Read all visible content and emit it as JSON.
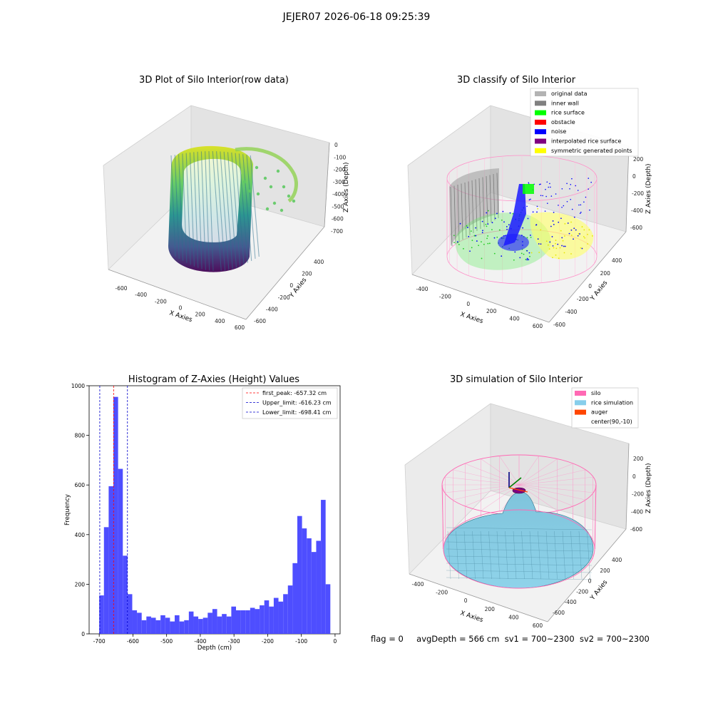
{
  "figure": {
    "suptitle": "JEJER07 2026-06-18 09:25:39",
    "status": {
      "flag": "flag = 0",
      "avgDepth": "avgDepth = 566 cm",
      "sv1": "sv1 = 700~2300",
      "sv2": "sv2 = 700~2300"
    }
  },
  "chart_data": [
    {
      "type": "scatter",
      "title": "3D Plot of Silo Interior(row data)",
      "xlabel": "X Axies",
      "ylabel": "Y Axies",
      "zlabel": "Z Axies (Depth)",
      "x_ticks": [
        "-600",
        "-400",
        "-200",
        "0",
        "200",
        "400",
        "600"
      ],
      "y_ticks": [
        "-600",
        "-400",
        "-200",
        "0",
        "200",
        "400"
      ],
      "z_ticks": [
        "0",
        "-100",
        "-200",
        "-300",
        "-400",
        "-500",
        "-600",
        "-700"
      ],
      "colormap": "viridis"
    },
    {
      "type": "scatter",
      "title": "3D classify of Silo Interior",
      "xlabel": "X Axies",
      "ylabel": "Y Axies",
      "zlabel": "Z Axies (Depth)",
      "x_ticks": [
        "-400",
        "-200",
        "0",
        "200",
        "400",
        "600"
      ],
      "y_ticks": [
        "-600",
        "-400",
        "-200",
        "0",
        "200",
        "400"
      ],
      "z_ticks": [
        "200",
        "0",
        "-200",
        "-400",
        "-600"
      ],
      "legend": [
        {
          "label": "original data",
          "color": "#b3b3b3"
        },
        {
          "label": "inner wall",
          "color": "#808080"
        },
        {
          "label": "rice surface",
          "color": "#00ff00"
        },
        {
          "label": "obstacle",
          "color": "#ff0000"
        },
        {
          "label": "noise",
          "color": "#0000ff"
        },
        {
          "label": "interpolated rice surface",
          "color": "#800080"
        },
        {
          "label": "symmetric generated points",
          "color": "#ffff00"
        }
      ]
    },
    {
      "type": "bar",
      "title": "Histogram of Z-Axies (Height) Values",
      "xlabel": "Depth (cm)",
      "ylabel": "Frequency",
      "xlim": [
        -730,
        15
      ],
      "ylim": [
        0,
        1000
      ],
      "x_ticks": [
        -700,
        -600,
        -500,
        -400,
        -300,
        -200,
        -100,
        0
      ],
      "y_ticks": [
        0,
        200,
        400,
        600,
        800,
        1000
      ],
      "bin_start": -700,
      "bin_width": 14,
      "values": [
        155,
        430,
        595,
        955,
        665,
        315,
        160,
        95,
        85,
        55,
        70,
        65,
        55,
        75,
        65,
        50,
        75,
        50,
        55,
        90,
        70,
        60,
        65,
        85,
        100,
        70,
        80,
        70,
        110,
        95,
        95,
        95,
        105,
        100,
        115,
        135,
        110,
        145,
        130,
        160,
        195,
        285,
        475,
        425,
        385,
        330,
        375,
        540,
        200
      ],
      "bar_color": "#4a4aff",
      "vlines": [
        {
          "label": "first_peak: -657.32 cm",
          "x": -657.32,
          "color": "#ff0000"
        },
        {
          "label": "Upper_limit: -616.23 cm",
          "x": -616.23,
          "color": "#0000cc"
        },
        {
          "label": "Lower_limit: -698.41 cm",
          "x": -698.41,
          "color": "#0000cc"
        }
      ],
      "legend_position": "top-right"
    },
    {
      "type": "surface",
      "title": "3D simulation of Silo Interior",
      "xlabel": "X Axies",
      "ylabel": "Y Axies",
      "zlabel": "Z Axies (Depth)",
      "x_ticks": [
        "-400",
        "-200",
        "0",
        "200",
        "400",
        "600"
      ],
      "y_ticks": [
        "-600",
        "-400",
        "-200",
        "0",
        "200",
        "400"
      ],
      "z_ticks": [
        "200",
        "0",
        "-200",
        "-400",
        "-600"
      ],
      "legend": [
        {
          "label": "silo",
          "color": "#ff69b4"
        },
        {
          "label": "rice simulation",
          "color": "#87ceeb"
        },
        {
          "label": "auger",
          "color": "#ff4500"
        },
        {
          "label": "center(90,-10)",
          "color": ""
        }
      ]
    }
  ]
}
